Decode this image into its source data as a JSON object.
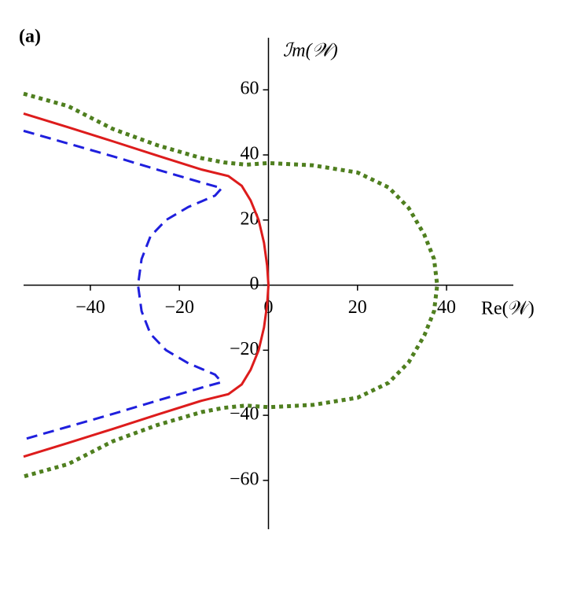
{
  "chart_data": {
    "type": "line",
    "panel_label": "(a)",
    "x_label": "Re(𝒲)",
    "y_label": "ℐm(𝒲)",
    "xlim": [
      -55,
      55
    ],
    "ylim": [
      -75,
      76
    ],
    "xticks": [
      {
        "value": -40,
        "label": "−40"
      },
      {
        "value": -20,
        "label": "−20"
      },
      0,
      20,
      40
    ],
    "yticks": [
      {
        "value": -60,
        "label": "−60"
      },
      {
        "value": -40,
        "label": "−40"
      },
      {
        "value": -20,
        "label": "−20"
      },
      0,
      20,
      40,
      60
    ],
    "series": [
      {
        "color": "#dd1c1c",
        "dash": "solid",
        "x": [
          -55,
          -45,
          -35,
          -25,
          -15,
          -9,
          -6,
          -4,
          -2.2,
          -1,
          -0.3,
          0,
          -0.3,
          -1,
          -2.2,
          -4,
          -6,
          -9,
          -15,
          -25,
          -35,
          -45,
          -55
        ],
        "values": [
          52.7,
          48.5,
          44.2,
          39.8,
          35.5,
          33.5,
          30.5,
          26,
          20,
          13,
          6,
          0,
          -6,
          -13,
          -20,
          -26,
          -30.5,
          -33.5,
          -35.5,
          -39.8,
          -44.2,
          -48.5,
          -52.7
        ]
      },
      {
        "color": "#1f1fdd",
        "dash": "dashed",
        "x": [
          -55,
          -45,
          -35,
          -25,
          -15,
          -10.5,
          -12,
          -18,
          -23,
          -26.5,
          -28.5,
          -29.3,
          -28.5,
          -26.5,
          -23,
          -18,
          -12,
          -10.5,
          -15,
          -25,
          -35,
          -45,
          -55
        ],
        "values": [
          47.4,
          43.5,
          39.6,
          35.5,
          31.5,
          29.8,
          27.5,
          24,
          20,
          15,
          8,
          0,
          -8,
          -15,
          -20,
          -24,
          -27.5,
          -29.8,
          -31.5,
          -35.5,
          -39.6,
          -43.5,
          -47.4
        ]
      },
      {
        "color": "#4f7f1f",
        "dash": "dotted",
        "x": [
          -55,
          -45,
          -35,
          -25,
          -15,
          -10,
          -5,
          0,
          10,
          20,
          27,
          31.5,
          35,
          37.2,
          37.9,
          37.2,
          35,
          31.5,
          27,
          20,
          10,
          0,
          -5,
          -10,
          -15,
          -25,
          -35,
          -45,
          -55
        ],
        "values": [
          58.8,
          55,
          48,
          43,
          39,
          37.7,
          37,
          37.5,
          36.8,
          34.6,
          30,
          23.7,
          15.5,
          8,
          0,
          -8,
          -15.5,
          -23.7,
          -30,
          -34.6,
          -36.8,
          -37.5,
          -37,
          -37.7,
          -39,
          -43,
          -48,
          -55,
          -58.8
        ]
      }
    ]
  }
}
